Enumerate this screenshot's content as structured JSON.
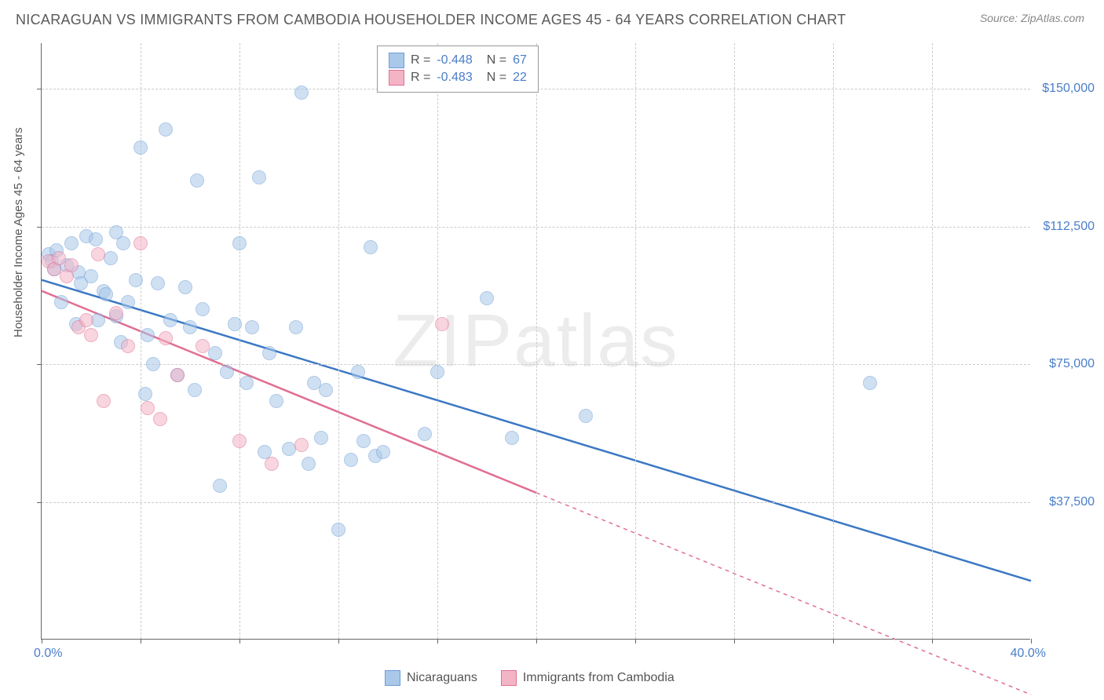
{
  "title": "NICARAGUAN VS IMMIGRANTS FROM CAMBODIA HOUSEHOLDER INCOME AGES 45 - 64 YEARS CORRELATION CHART",
  "source": "Source: ZipAtlas.com",
  "watermark": "ZIPatlas",
  "chart": {
    "type": "scatter",
    "y_axis_label": "Householder Income Ages 45 - 64 years",
    "xlim": [
      0,
      40
    ],
    "ylim": [
      0,
      162500
    ],
    "x_tick_positions": [
      0,
      4,
      8,
      12,
      16,
      20,
      24,
      28,
      32,
      36,
      40
    ],
    "y_grid_values": [
      37500,
      75000,
      112500,
      150000
    ],
    "y_tick_labels": [
      "$37,500",
      "$75,000",
      "$112,500",
      "$150,000"
    ],
    "x_min_label": "0.0%",
    "x_max_label": "40.0%",
    "background_color": "#ffffff",
    "grid_color": "#cccccc",
    "axis_color": "#666666",
    "tick_label_color": "#4a7ec9",
    "series": [
      {
        "name": "Nicaraguans",
        "R": "-0.448",
        "N": "67",
        "marker_fill": "#a9c8ea",
        "marker_stroke": "#6e9dd4",
        "marker_radius": 9,
        "fill_opacity": 0.55,
        "line_color": "#3b78c4",
        "line_width": 2.5,
        "regression": {
          "x1": 0,
          "y1": 98000,
          "x2": 40,
          "y2": 16000,
          "dash_after_x": 40
        },
        "points": [
          [
            0.3,
            105000
          ],
          [
            0.4,
            103000
          ],
          [
            0.5,
            101000
          ],
          [
            0.6,
            106000
          ],
          [
            0.8,
            92000
          ],
          [
            1.0,
            102000
          ],
          [
            1.2,
            108000
          ],
          [
            1.4,
            86000
          ],
          [
            1.5,
            100000
          ],
          [
            1.6,
            97000
          ],
          [
            1.8,
            110000
          ],
          [
            2.0,
            99000
          ],
          [
            2.2,
            109000
          ],
          [
            2.3,
            87000
          ],
          [
            2.5,
            95000
          ],
          [
            2.6,
            94000
          ],
          [
            2.8,
            104000
          ],
          [
            3.0,
            111000
          ],
          [
            3.0,
            88000
          ],
          [
            3.2,
            81000
          ],
          [
            3.3,
            108000
          ],
          [
            3.5,
            92000
          ],
          [
            3.8,
            98000
          ],
          [
            4.0,
            134000
          ],
          [
            4.2,
            67000
          ],
          [
            4.3,
            83000
          ],
          [
            4.5,
            75000
          ],
          [
            4.7,
            97000
          ],
          [
            5.0,
            139000
          ],
          [
            5.2,
            87000
          ],
          [
            5.5,
            72000
          ],
          [
            5.8,
            96000
          ],
          [
            6.0,
            85000
          ],
          [
            6.2,
            68000
          ],
          [
            6.3,
            125000
          ],
          [
            6.5,
            90000
          ],
          [
            7.0,
            78000
          ],
          [
            7.2,
            42000
          ],
          [
            7.5,
            73000
          ],
          [
            7.8,
            86000
          ],
          [
            8.0,
            108000
          ],
          [
            8.3,
            70000
          ],
          [
            8.5,
            85000
          ],
          [
            8.8,
            126000
          ],
          [
            9.0,
            51000
          ],
          [
            9.2,
            78000
          ],
          [
            9.5,
            65000
          ],
          [
            10.0,
            52000
          ],
          [
            10.3,
            85000
          ],
          [
            10.5,
            149000
          ],
          [
            10.8,
            48000
          ],
          [
            11.0,
            70000
          ],
          [
            11.3,
            55000
          ],
          [
            11.5,
            68000
          ],
          [
            12.0,
            30000
          ],
          [
            12.5,
            49000
          ],
          [
            12.8,
            73000
          ],
          [
            13.0,
            54000
          ],
          [
            13.3,
            107000
          ],
          [
            13.5,
            50000
          ],
          [
            15.5,
            56000
          ],
          [
            16.0,
            73000
          ],
          [
            18.0,
            93000
          ],
          [
            19.0,
            55000
          ],
          [
            22.0,
            61000
          ],
          [
            33.5,
            70000
          ],
          [
            13.8,
            51000
          ]
        ]
      },
      {
        "name": "Immigrants from Cambodia",
        "R": "-0.483",
        "N": "22",
        "marker_fill": "#f3b4c6",
        "marker_stroke": "#e06f91",
        "marker_radius": 9,
        "fill_opacity": 0.55,
        "line_color": "#e06f91",
        "line_width": 2.5,
        "regression": {
          "x1": 0,
          "y1": 95000,
          "x2": 20,
          "y2": 40000,
          "dash_after_x": 20,
          "extend_to_x": 40,
          "extend_to_y": -15000
        },
        "points": [
          [
            0.3,
            103000
          ],
          [
            0.5,
            101000
          ],
          [
            0.7,
            104000
          ],
          [
            1.0,
            99000
          ],
          [
            1.2,
            102000
          ],
          [
            1.5,
            85000
          ],
          [
            1.8,
            87000
          ],
          [
            2.0,
            83000
          ],
          [
            2.3,
            105000
          ],
          [
            2.5,
            65000
          ],
          [
            3.0,
            89000
          ],
          [
            3.5,
            80000
          ],
          [
            4.0,
            108000
          ],
          [
            4.3,
            63000
          ],
          [
            4.8,
            60000
          ],
          [
            5.0,
            82000
          ],
          [
            5.5,
            72000
          ],
          [
            6.5,
            80000
          ],
          [
            8.0,
            54000
          ],
          [
            9.3,
            48000
          ],
          [
            10.5,
            53000
          ],
          [
            16.2,
            86000
          ]
        ]
      }
    ],
    "legend_bottom_labels": [
      "Nicaraguans",
      "Immigrants from Cambodia"
    ]
  }
}
